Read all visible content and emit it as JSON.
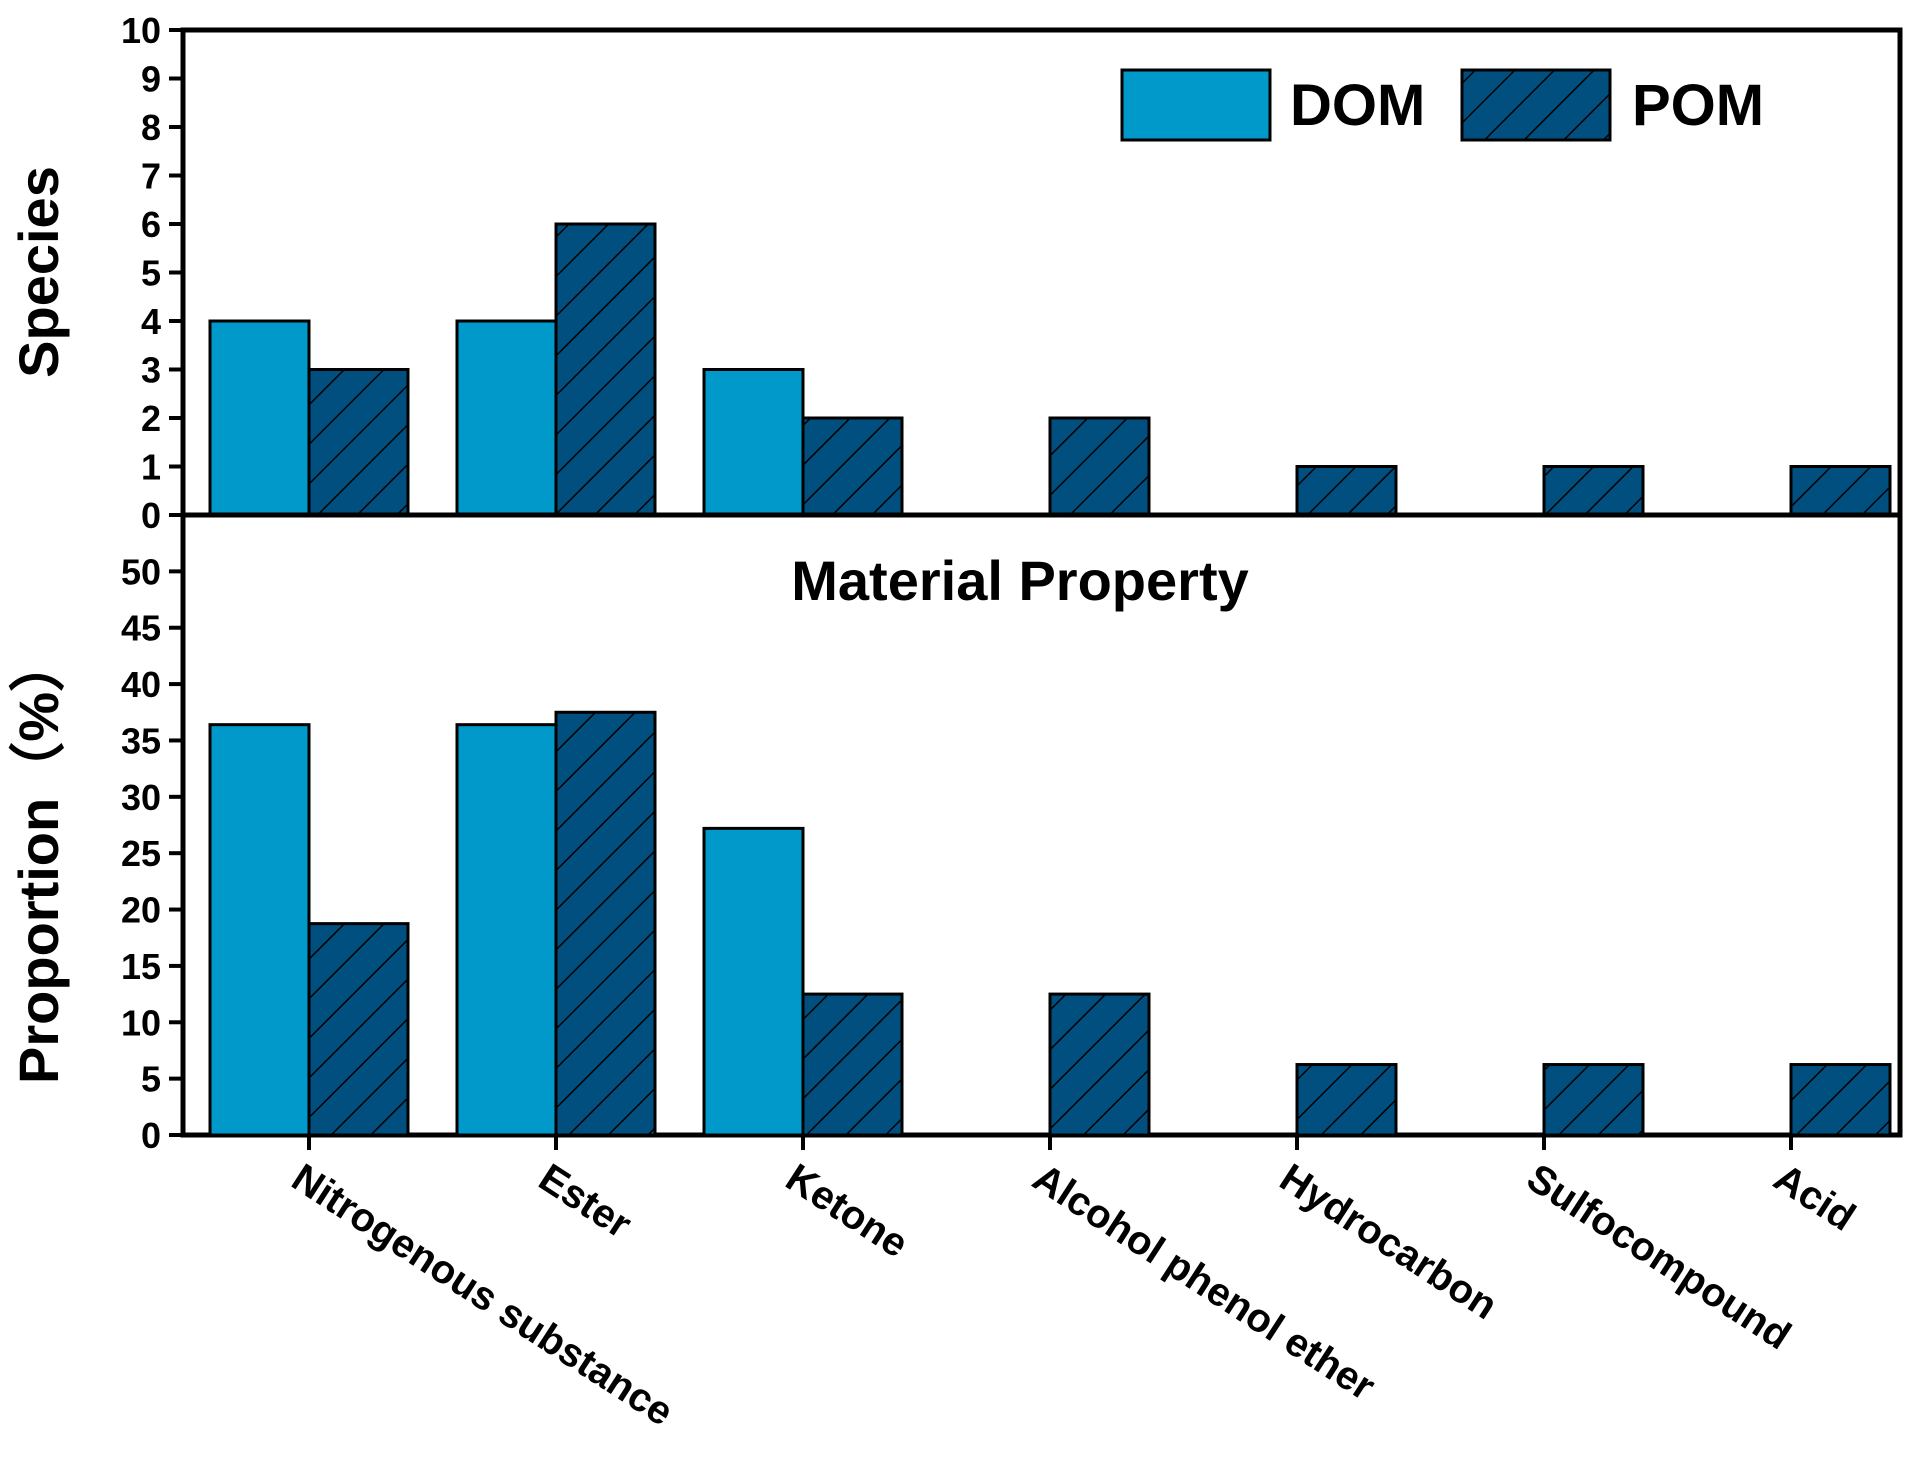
{
  "chart_data": [
    {
      "type": "bar",
      "categories": [
        "Nitrogenous substance",
        "Ester",
        "Ketone",
        "Alcohol phenol ether",
        "Hydrocarbon",
        "Sulfocompound",
        "Acid"
      ],
      "series": [
        {
          "name": "DOM",
          "values": [
            4,
            4,
            3,
            0,
            0,
            0,
            0
          ]
        },
        {
          "name": "POM",
          "values": [
            3,
            6,
            2,
            2,
            1,
            1,
            1
          ]
        }
      ],
      "ylabel": "Species",
      "ylim": [
        0,
        10
      ],
      "yticks": [
        "0",
        "1",
        "2",
        "3",
        "4",
        "5",
        "6",
        "7",
        "8",
        "9",
        "10"
      ],
      "legend": "top-right",
      "grid": false
    },
    {
      "type": "bar",
      "title": "Material Property",
      "categories": [
        "Nitrogenous substance",
        "Ester",
        "Ketone",
        "Alcohol phenol ether",
        "Hydrocarbon",
        "Sulfocompound",
        "Acid"
      ],
      "series": [
        {
          "name": "DOM",
          "values": [
            36.4,
            36.4,
            27.2,
            0,
            0,
            0,
            0
          ]
        },
        {
          "name": "POM",
          "values": [
            18.75,
            37.5,
            12.5,
            12.5,
            6.25,
            6.25,
            6.25
          ]
        }
      ],
      "ylabel": "Proportion（%）",
      "ylim": [
        0,
        55
      ],
      "yticks": [
        "0",
        "5",
        "10",
        "15",
        "20",
        "25",
        "30",
        "35",
        "40",
        "45",
        "50"
      ],
      "grid": false
    }
  ],
  "colors": {
    "DOM": "#0099c9",
    "POM": "#004f7f",
    "stroke": "#000000"
  },
  "legend_items": [
    {
      "label": "DOM",
      "pattern": "solid"
    },
    {
      "label": "POM",
      "pattern": "hatched"
    }
  ]
}
